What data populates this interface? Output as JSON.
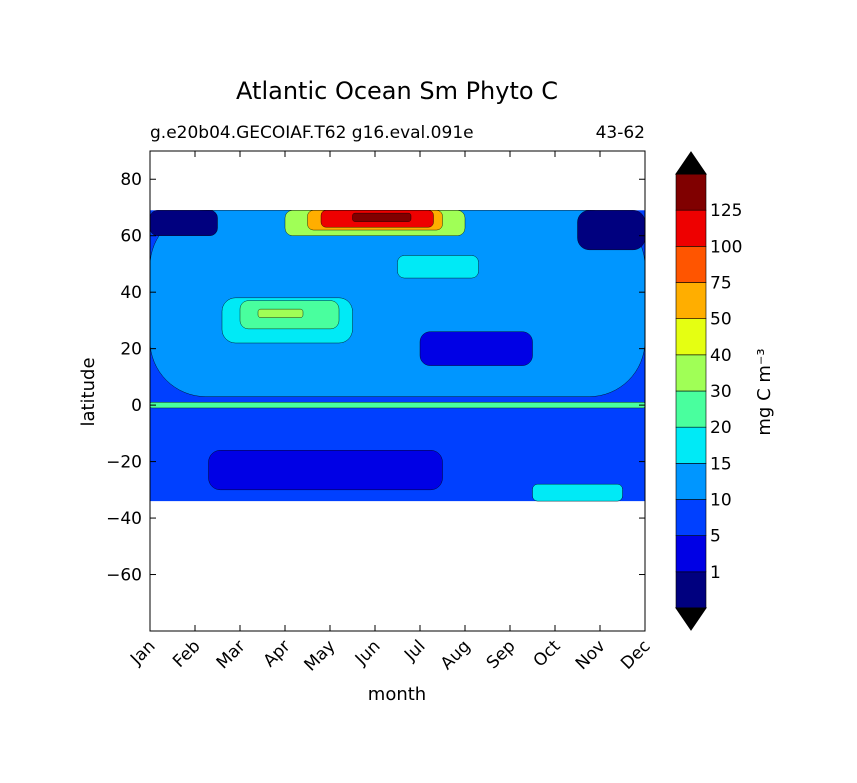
{
  "chart_data": {
    "type": "heatmap",
    "title": "Atlantic Ocean Sm Phyto C",
    "subtitle_left": "g.e20b04.GECOIAF.T62 g16.eval.091e",
    "subtitle_right": "43-62",
    "xlabel": "month",
    "ylabel": "latitude",
    "x_categories": [
      "Jan",
      "Feb",
      "Mar",
      "Apr",
      "May",
      "Jun",
      "Jul",
      "Aug",
      "Sep",
      "Oct",
      "Nov",
      "Dec"
    ],
    "xlim": [
      0,
      11
    ],
    "ylim": [
      -80,
      90
    ],
    "y_ticks": [
      80,
      60,
      40,
      20,
      0,
      -20,
      -40,
      -60
    ],
    "y_tick_labels": [
      "80",
      "60",
      "40",
      "20",
      "0",
      "−20",
      "−40",
      "−60"
    ],
    "data_lat_range": [
      -34,
      69
    ],
    "colorbar": {
      "label": "mg C m⁻³",
      "levels": [
        0,
        1,
        5,
        10,
        15,
        20,
        30,
        40,
        50,
        75,
        100,
        125,
        150
      ],
      "tick_labels": [
        "1",
        "5",
        "10",
        "15",
        "20",
        "30",
        "40",
        "50",
        "75",
        "100",
        "125"
      ],
      "colors": [
        "#00007f",
        "#0000e5",
        "#0040ff",
        "#0096ff",
        "#00eaf6",
        "#49ff9e",
        "#a0ff56",
        "#e5ff12",
        "#ffae00",
        "#ff5500",
        "#ee0000",
        "#800000"
      ],
      "extend_min_color": "#000000",
      "extend_max_color": "#000000"
    },
    "field": {
      "description_levels": "contour band index by region",
      "regions": [
        {
          "lat": [
            -34,
            69
          ],
          "month": [
            0,
            11
          ],
          "level": 2
        },
        {
          "lat": [
            3,
            69
          ],
          "month": [
            0,
            11
          ],
          "level": 3
        },
        {
          "lat": [
            -1,
            1
          ],
          "month": [
            0,
            11
          ],
          "level": 5
        },
        {
          "lat": [
            -30,
            -16
          ],
          "month": [
            1.3,
            6.5
          ],
          "level": 1
        },
        {
          "lat": [
            14,
            26
          ],
          "month": [
            6,
            8.5
          ],
          "level": 1
        },
        {
          "lat": [
            60,
            69
          ],
          "month": [
            0,
            1.5
          ],
          "level": 0
        },
        {
          "lat": [
            55,
            69
          ],
          "month": [
            9.5,
            11
          ],
          "level": 0
        },
        {
          "lat": [
            22,
            38
          ],
          "month": [
            1.6,
            4.5
          ],
          "level": 4
        },
        {
          "lat": [
            27,
            37
          ],
          "month": [
            2.0,
            4.2
          ],
          "level": 5
        },
        {
          "lat": [
            31,
            34
          ],
          "month": [
            2.4,
            3.4
          ],
          "level": 6
        },
        {
          "lat": [
            45,
            53
          ],
          "month": [
            5.5,
            7.3
          ],
          "level": 4
        },
        {
          "lat": [
            60,
            69
          ],
          "month": [
            3.0,
            7.0
          ],
          "level": 6
        },
        {
          "lat": [
            62,
            69
          ],
          "month": [
            3.5,
            6.5
          ],
          "level": 8
        },
        {
          "lat": [
            63,
            69
          ],
          "month": [
            3.8,
            6.3
          ],
          "level": 10
        },
        {
          "lat": [
            65,
            68
          ],
          "month": [
            4.5,
            5.8
          ],
          "level": 11
        },
        {
          "lat": [
            -34,
            -28
          ],
          "month": [
            8.5,
            10.5
          ],
          "level": 4
        }
      ]
    }
  }
}
